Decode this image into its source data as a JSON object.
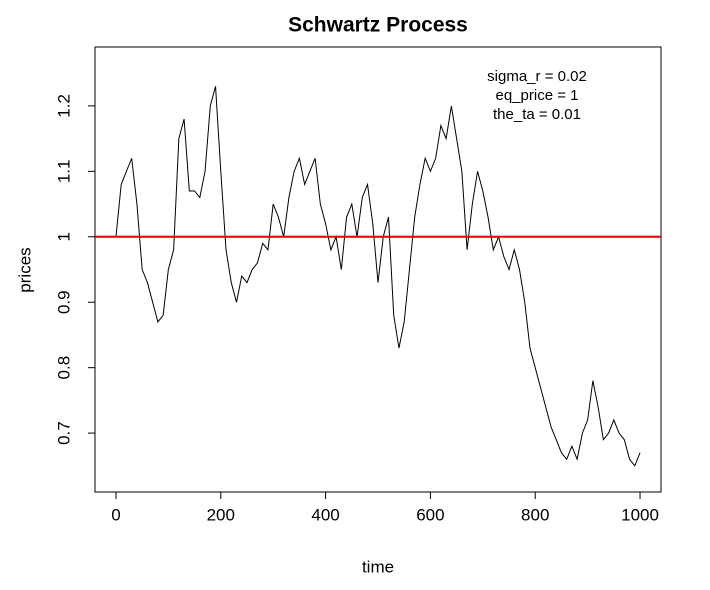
{
  "chart_data": {
    "type": "line",
    "title": "Schwartz Process",
    "x_label": "time",
    "y_label": "prices",
    "x": [
      0,
      10,
      20,
      30,
      40,
      50,
      60,
      70,
      80,
      90,
      100,
      110,
      120,
      130,
      140,
      150,
      160,
      170,
      180,
      190,
      200,
      210,
      220,
      230,
      240,
      250,
      260,
      270,
      280,
      290,
      300,
      310,
      320,
      330,
      340,
      350,
      360,
      370,
      380,
      390,
      400,
      410,
      420,
      430,
      440,
      450,
      460,
      470,
      480,
      490,
      500,
      510,
      520,
      530,
      540,
      550,
      560,
      570,
      580,
      590,
      600,
      610,
      620,
      630,
      640,
      650,
      660,
      670,
      680,
      690,
      700,
      710,
      720,
      730,
      740,
      750,
      760,
      770,
      780,
      790,
      800,
      810,
      820,
      830,
      840,
      850,
      860,
      870,
      880,
      890,
      900,
      910,
      920,
      930,
      940,
      950,
      960,
      970,
      980,
      990,
      1000
    ],
    "series": [
      {
        "color": "#000000",
        "values": [
          1.0,
          1.08,
          1.1,
          1.12,
          1.05,
          0.95,
          0.93,
          0.9,
          0.87,
          0.88,
          0.95,
          0.98,
          1.15,
          1.18,
          1.07,
          1.07,
          1.06,
          1.1,
          1.2,
          1.23,
          1.1,
          0.98,
          0.93,
          0.9,
          0.94,
          0.93,
          0.95,
          0.96,
          0.99,
          0.98,
          1.05,
          1.03,
          1.0,
          1.06,
          1.1,
          1.12,
          1.08,
          1.1,
          1.12,
          1.05,
          1.02,
          0.98,
          1.0,
          0.95,
          1.03,
          1.05,
          1.0,
          1.06,
          1.08,
          1.02,
          0.93,
          1.0,
          1.03,
          0.88,
          0.83,
          0.87,
          0.95,
          1.03,
          1.08,
          1.12,
          1.1,
          1.12,
          1.17,
          1.15,
          1.2,
          1.15,
          1.1,
          0.98,
          1.05,
          1.1,
          1.07,
          1.03,
          0.98,
          1.0,
          0.97,
          0.95,
          0.98,
          0.95,
          0.9,
          0.83,
          0.8,
          0.77,
          0.74,
          0.71,
          0.69,
          0.67,
          0.66,
          0.68,
          0.66,
          0.7,
          0.72,
          0.78,
          0.74,
          0.69,
          0.7,
          0.72,
          0.7,
          0.69,
          0.66,
          0.65,
          0.67
        ]
      }
    ],
    "hline": {
      "value": 1,
      "color": "#e00000"
    },
    "annotation": [
      "sigma_r = 0.02",
      "eq_price = 1",
      "the_ta = 0.01"
    ],
    "xlim": [
      -40,
      1040
    ],
    "xticks": [
      0,
      200,
      400,
      600,
      800,
      1000
    ],
    "ylim": [
      0.61,
      1.29
    ],
    "yticks": [
      0.7,
      0.8,
      0.9,
      1.0,
      1.1,
      1.2
    ]
  }
}
